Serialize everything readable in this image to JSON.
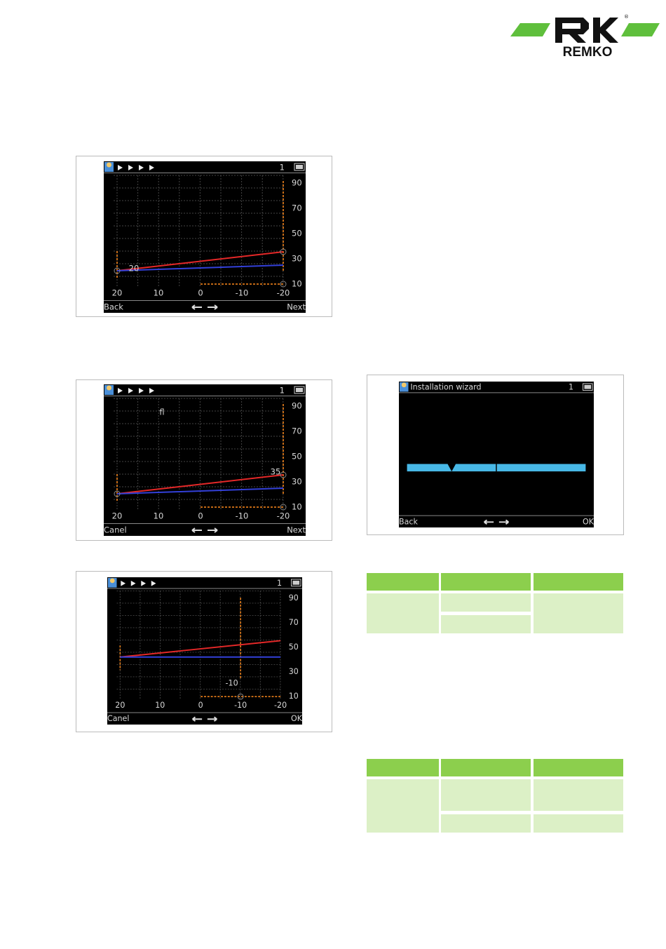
{
  "logo": {
    "text": "REMKO",
    "registered_mark": "®"
  },
  "screens": [
    {
      "page_number": 1,
      "y_labels": [
        90,
        70,
        50,
        30,
        10
      ],
      "x_labels": [
        20,
        10,
        0,
        -10,
        -20
      ],
      "annotations": [
        20
      ],
      "left_button": "Back",
      "right_button": "Next"
    },
    {
      "page_number": 1,
      "y_labels": [
        90,
        70,
        50,
        30,
        10
      ],
      "x_labels": [
        20,
        10,
        0,
        -10,
        -20
      ],
      "annotations": [
        "fl",
        35
      ],
      "left_button": "Canel",
      "right_button": "Next"
    },
    {
      "page_number": 1,
      "y_labels": [
        90,
        70,
        50,
        30,
        10
      ],
      "x_labels": [
        20,
        10,
        0,
        -10,
        -20
      ],
      "annotations": [
        -10
      ],
      "left_button": "Canel",
      "right_button": "OK"
    }
  ],
  "wizard": {
    "title": "Installation wizard",
    "page_number": 1,
    "left_button": "Back",
    "right_button": "OK"
  }
}
